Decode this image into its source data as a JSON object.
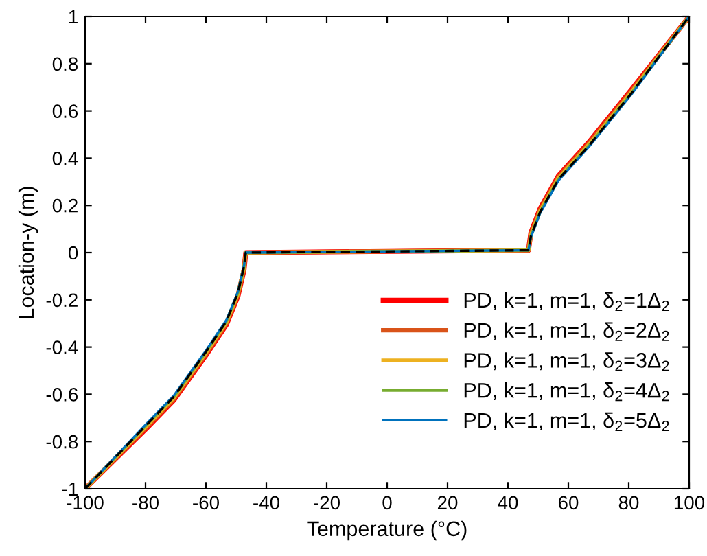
{
  "chart_data": {
    "type": "line",
    "xlabel": "Temperature (°C)",
    "ylabel": "Location-y (m)",
    "xlim": [
      -100,
      100
    ],
    "ylim": [
      -1,
      1
    ],
    "xticks": [
      -100,
      -80,
      -60,
      -40,
      -20,
      0,
      20,
      40,
      60,
      80,
      100
    ],
    "yticks": [
      -1,
      -0.8,
      -0.6,
      -0.4,
      -0.2,
      0,
      0.2,
      0.4,
      0.6,
      0.8,
      1
    ],
    "x": [
      -100,
      -79.7,
      -70.6,
      -60,
      -53.2,
      -49.4,
      -47.4,
      -46.8,
      46.8,
      47.6,
      50.6,
      56.7,
      67.3,
      80.9,
      100
    ],
    "series": [
      {
        "name": "PD, k=1, m=1, δ$_{2}$=1Δ$_{2}$",
        "color": "#ff0000",
        "line_style": "solid",
        "values": [
          -1,
          -0.745,
          -0.625,
          -0.435,
          -0.305,
          -0.185,
          -0.075,
          0,
          0.01,
          0.085,
          0.185,
          0.325,
          0.475,
          0.69,
          1
        ]
      },
      {
        "name": "PD, k=1, m=1, δ$_{2}$=2Δ$_{2}$",
        "color": "#d95319",
        "line_style": "solid",
        "values": [
          -1,
          -0.74,
          -0.62,
          -0.43,
          -0.3,
          -0.18,
          -0.07,
          0,
          0.01,
          0.08,
          0.18,
          0.32,
          0.47,
          0.685,
          1
        ]
      },
      {
        "name": "PD, k=1, m=1, δ$_{2}$=3Δ$_{2}$",
        "color": "#edb120",
        "line_style": "solid",
        "values": [
          -1,
          -0.735,
          -0.615,
          -0.425,
          -0.295,
          -0.175,
          -0.065,
          0,
          0.01,
          0.075,
          0.175,
          0.315,
          0.465,
          0.68,
          1
        ]
      },
      {
        "name": "PD, k=1, m=1, δ$_{2}$=4Δ$_{2}$",
        "color": "#77ac30",
        "line_style": "solid",
        "values": [
          -1,
          -0.73,
          -0.61,
          -0.42,
          -0.29,
          -0.17,
          -0.06,
          0,
          0.01,
          0.07,
          0.17,
          0.31,
          0.46,
          0.675,
          1
        ]
      },
      {
        "name": "PD, k=1, m=1, δ$_{2}$=5Δ$_{2}$",
        "color": "#0072bd",
        "line_style": "solid",
        "values": [
          -1,
          -0.725,
          -0.605,
          -0.415,
          -0.285,
          -0.165,
          -0.055,
          0,
          0.01,
          0.065,
          0.165,
          0.305,
          0.455,
          0.67,
          1
        ]
      },
      {
        "color": "#000000",
        "line_style": "dashed",
        "values": [
          -1,
          -0.73,
          -0.61,
          -0.42,
          -0.29,
          -0.17,
          -0.06,
          0,
          0.01,
          0.07,
          0.17,
          0.31,
          0.46,
          0.675,
          1
        ]
      }
    ],
    "legend": "bottom right",
    "grid": false,
    "marker": "none"
  }
}
